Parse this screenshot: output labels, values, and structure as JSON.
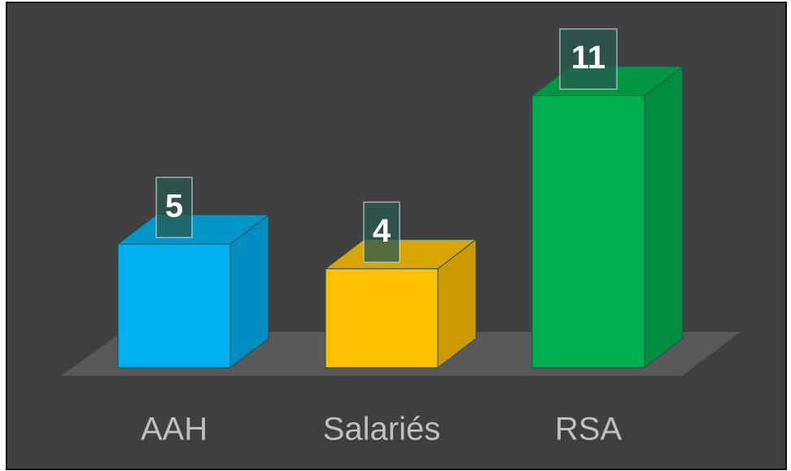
{
  "chart_data": {
    "type": "bar3d",
    "categories": [
      "AAH",
      "Salariés",
      "RSA"
    ],
    "values": [
      5,
      4,
      11
    ],
    "colors": [
      "#00b0f0",
      "#ffc000",
      "#00b050"
    ]
  }
}
